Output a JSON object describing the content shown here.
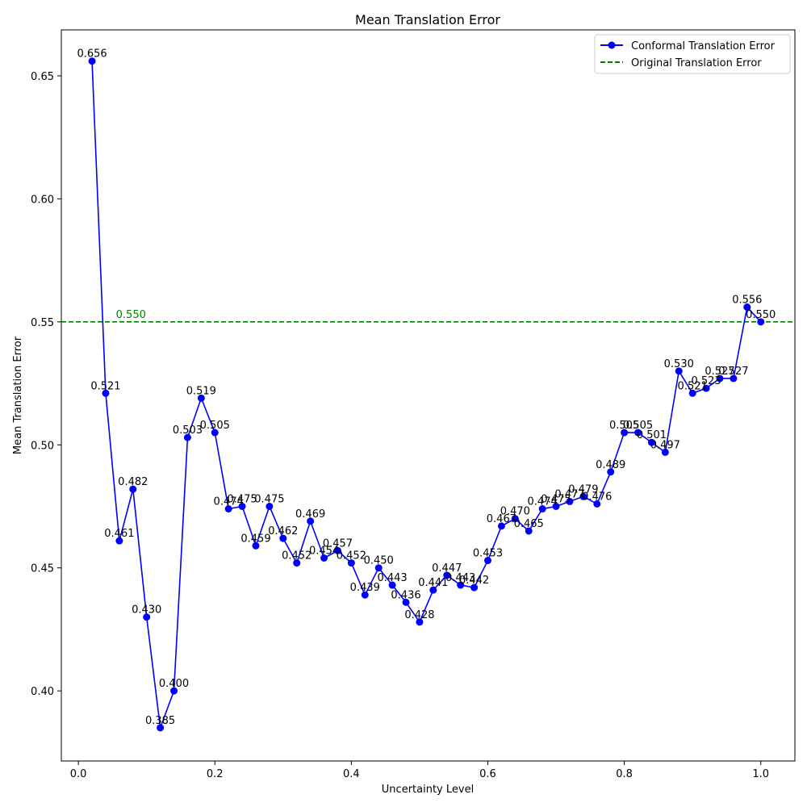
{
  "chart_data": {
    "type": "line",
    "title": "Mean Translation Error",
    "xlabel": "Uncertainty Level",
    "ylabel": "Mean Translation Error",
    "xlim": [
      -0.025,
      1.05
    ],
    "ylim": [
      0.3715,
      0.6687
    ],
    "xticks": [
      0.0,
      0.2,
      0.4,
      0.6,
      0.8,
      1.0
    ],
    "xtick_labels": [
      "0.0",
      "0.2",
      "0.4",
      "0.6",
      "0.8",
      "1.0"
    ],
    "yticks": [
      0.4,
      0.45,
      0.5,
      0.55,
      0.6,
      0.65
    ],
    "ytick_labels": [
      "0.40",
      "0.45",
      "0.50",
      "0.55",
      "0.60",
      "0.65"
    ],
    "grid": false,
    "legend_position": "top-right",
    "series": [
      {
        "name": "Conformal Translation Error",
        "color": "#0000ff",
        "marker": "circle",
        "x": [
          0.02,
          0.04,
          0.06,
          0.08,
          0.1,
          0.12,
          0.14,
          0.16,
          0.18,
          0.2,
          0.22,
          0.24,
          0.26,
          0.28,
          0.3,
          0.32,
          0.34,
          0.36,
          0.38,
          0.4,
          0.42,
          0.44,
          0.46,
          0.48,
          0.5,
          0.52,
          0.54,
          0.56,
          0.58,
          0.6,
          0.62,
          0.64,
          0.66,
          0.68,
          0.7,
          0.72,
          0.74,
          0.76,
          0.78,
          0.8,
          0.82,
          0.84,
          0.86,
          0.88,
          0.9,
          0.92,
          0.94,
          0.96,
          0.98,
          1.0
        ],
        "y": [
          0.656,
          0.521,
          0.461,
          0.482,
          0.43,
          0.385,
          0.4,
          0.503,
          0.519,
          0.505,
          0.474,
          0.475,
          0.459,
          0.475,
          0.462,
          0.452,
          0.469,
          0.454,
          0.457,
          0.452,
          0.439,
          0.45,
          0.443,
          0.436,
          0.428,
          0.441,
          0.447,
          0.443,
          0.442,
          0.453,
          0.467,
          0.47,
          0.465,
          0.474,
          0.475,
          0.477,
          0.479,
          0.476,
          0.489,
          0.505,
          0.505,
          0.501,
          0.497,
          0.53,
          0.521,
          0.523,
          0.527,
          0.527,
          0.556,
          0.55
        ],
        "labels": [
          "0.656",
          "0.521",
          "0.461",
          "0.482",
          "0.430",
          "0.385",
          "0.400",
          "0.503",
          "0.519",
          "0.505",
          "0.474",
          "0.475",
          "0.459",
          "0.475",
          "0.462",
          "0.452",
          "0.469",
          "0.454",
          "0.457",
          "0.452",
          "0.439",
          "0.450",
          "0.443",
          "0.436",
          "0.428",
          "0.441",
          "0.447",
          "0.443",
          "0.442",
          "0.453",
          "0.467",
          "0.470",
          "0.465",
          "0.474",
          "0.475",
          "0.477",
          "0.479",
          "0.476",
          "0.489",
          "0.505",
          "0.505",
          "0.501",
          "0.497",
          "0.530",
          "0.521",
          "0.523",
          "0.527",
          "0.527",
          "0.556",
          "0.550"
        ]
      }
    ],
    "reference_lines": [
      {
        "name": "Original Translation Error",
        "value": 0.55,
        "label": "0.550",
        "label_x": 0.055,
        "color": "#008000",
        "style": "dashed"
      }
    ]
  }
}
